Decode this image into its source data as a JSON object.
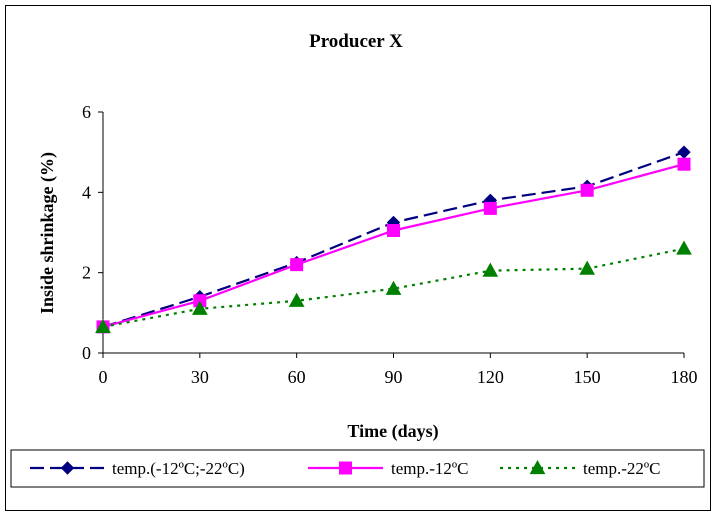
{
  "chart_data": {
    "type": "line",
    "title": "Producer X",
    "xlabel": "Time (days)",
    "ylabel": "Inside shrinkage (%)",
    "x": [
      0,
      30,
      60,
      90,
      120,
      150,
      180
    ],
    "xlim": [
      0,
      180
    ],
    "ylim": [
      0,
      6
    ],
    "x_ticks": [
      "0",
      "30",
      "60",
      "90",
      "120",
      "150",
      "180"
    ],
    "y_ticks": [
      "0",
      "2",
      "4",
      "6"
    ],
    "grid": false,
    "legend_position": "bottom",
    "series": [
      {
        "name": "temp.(-12ºC;-22ºC)",
        "values": [
          0.65,
          1.4,
          2.25,
          3.25,
          3.8,
          4.15,
          5.0
        ],
        "color": "#000080",
        "marker": "diamond",
        "line_style": "long-dash"
      },
      {
        "name": "temp.-12ºC",
        "values": [
          0.65,
          1.3,
          2.2,
          3.05,
          3.6,
          4.05,
          4.7
        ],
        "color": "#FF00FF",
        "marker": "square",
        "line_style": "solid"
      },
      {
        "name": "temp.-22ºC",
        "values": [
          0.65,
          1.1,
          1.3,
          1.6,
          2.05,
          2.1,
          2.6
        ],
        "color": "#008000",
        "marker": "triangle",
        "line_style": "dotted"
      }
    ]
  }
}
